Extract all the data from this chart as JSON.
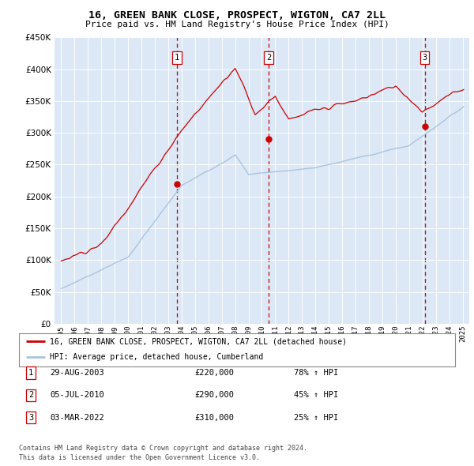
{
  "title": "16, GREEN BANK CLOSE, PROSPECT, WIGTON, CA7 2LL",
  "subtitle": "Price paid vs. HM Land Registry's House Price Index (HPI)",
  "legend_line1": "16, GREEN BANK CLOSE, PROSPECT, WIGTON, CA7 2LL (detached house)",
  "legend_line2": "HPI: Average price, detached house, Cumberland",
  "footnote1": "Contains HM Land Registry data © Crown copyright and database right 2024.",
  "footnote2": "This data is licensed under the Open Government Licence v3.0.",
  "transactions": [
    {
      "label": "1",
      "date": "29-AUG-2003",
      "price": 220000,
      "pct": "78%",
      "direction": "↑",
      "year": 2003.66
    },
    {
      "label": "2",
      "date": "05-JUL-2010",
      "price": 290000,
      "pct": "45%",
      "direction": "↑",
      "year": 2010.5
    },
    {
      "label": "3",
      "date": "03-MAR-2022",
      "price": 310000,
      "pct": "25%",
      "direction": "↑",
      "year": 2022.17
    }
  ],
  "hpi_color": "#aac4e0",
  "price_color": "#cc0000",
  "vline_color": "#cc0000",
  "marker_color": "#cc0000",
  "background_color": "#dce8f5",
  "grid_color": "#ffffff",
  "ylim": [
    0,
    450000
  ],
  "yticks": [
    0,
    50000,
    100000,
    150000,
    200000,
    250000,
    300000,
    350000,
    400000,
    450000
  ],
  "xlim_start": 1994.5,
  "xlim_end": 2025.5
}
